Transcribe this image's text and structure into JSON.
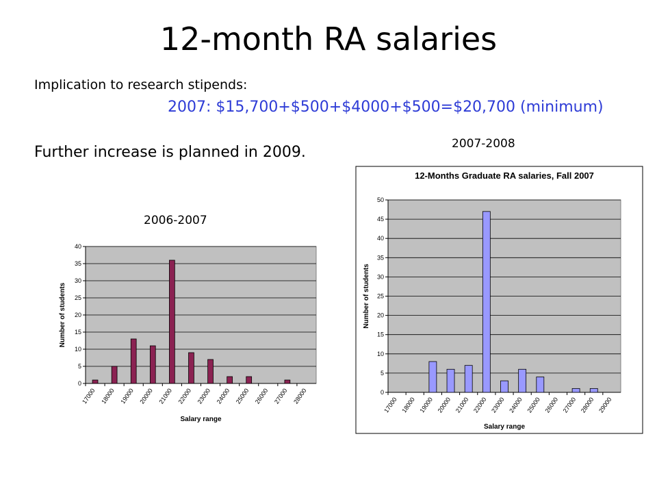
{
  "slide": {
    "title": "12-month RA salaries",
    "implication": "Implication to research stipends:",
    "formula": "2007:  $15,700+$500+$4000+$500=$20,700 (minimum)",
    "further": "Further increase is planned in 2009.",
    "label_2007_2008": "2007-2008",
    "label_2006_2007": "2006-2007"
  },
  "chart_data": [
    {
      "type": "bar",
      "title": "",
      "xlabel": "Salary range",
      "ylabel": "Number of students",
      "ylim": [
        0,
        40
      ],
      "yticks": [
        0,
        5,
        10,
        15,
        20,
        25,
        30,
        35,
        40
      ],
      "categories": [
        "17000",
        "18000",
        "19000",
        "20000",
        "21000",
        "22000",
        "23000",
        "24000",
        "25000",
        "26000",
        "27000",
        "28000"
      ],
      "values": [
        1,
        5,
        13,
        11,
        36,
        9,
        7,
        2,
        2,
        0,
        1,
        0
      ],
      "grid": true,
      "colors": {
        "bar": "#8b2252",
        "plot_bg": "#c0c0c0"
      }
    },
    {
      "type": "bar",
      "title": "12-Months Graduate RA salaries, Fall 2007",
      "xlabel": "Salary range",
      "ylabel": "Number of students",
      "ylim": [
        0,
        50
      ],
      "yticks": [
        0,
        5,
        10,
        15,
        20,
        25,
        30,
        35,
        40,
        45,
        50
      ],
      "categories": [
        "17000",
        "18000",
        "19000",
        "20000",
        "21000",
        "22000",
        "23000",
        "24000",
        "25000",
        "26000",
        "27000",
        "28000",
        "29000"
      ],
      "values": [
        0,
        0,
        8,
        6,
        7,
        47,
        3,
        6,
        4,
        0,
        1,
        1,
        0
      ],
      "grid": true,
      "colors": {
        "bar": "#9999ff",
        "plot_bg": "#c0c0c0"
      }
    }
  ]
}
